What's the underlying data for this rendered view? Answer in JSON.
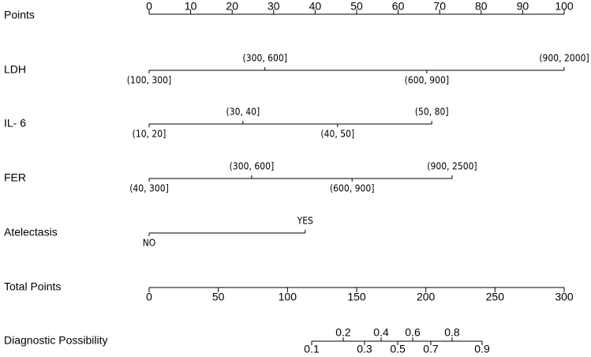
{
  "chart_data": {
    "type": "nomogram",
    "points_axis": {
      "name": "Points",
      "xlim": [
        0,
        100
      ],
      "xticks": [
        0,
        10,
        20,
        30,
        40,
        50,
        60,
        70,
        80,
        90,
        100
      ]
    },
    "variables": [
      {
        "name": "LDH",
        "levels": [
          {
            "label": "(100, 300]",
            "points": 0
          },
          {
            "label": "(300, 600]",
            "points": 27.9
          },
          {
            "label": "(600, 900]",
            "points": 66.9
          },
          {
            "label": "(900, 2000]",
            "points": 100
          }
        ]
      },
      {
        "name": "IL- 6",
        "levels": [
          {
            "label": "(10, 20]",
            "points": 0
          },
          {
            "label": "(30, 40]",
            "points": 22.6
          },
          {
            "label": "(40, 50]",
            "points": 45.4
          },
          {
            "label": "(50, 80]",
            "points": 68.1
          }
        ]
      },
      {
        "name": "FER",
        "levels": [
          {
            "label": "(40, 300]",
            "points": 0
          },
          {
            "label": "(300, 600]",
            "points": 24.7
          },
          {
            "label": "(600, 900]",
            "points": 48.9
          },
          {
            "label": "(900, 2500]",
            "points": 73
          }
        ]
      },
      {
        "name": "Atelectasis",
        "levels": [
          {
            "label": "NO",
            "points": 0
          },
          {
            "label": "YES",
            "points": 37.6
          }
        ]
      }
    ],
    "total_axis": {
      "name": "Total Points",
      "xlim": [
        0,
        300
      ],
      "xticks": [
        0,
        50,
        100,
        150,
        200,
        250,
        300
      ]
    },
    "probability_axis": {
      "name": "Diagnostic Possibility",
      "probabilities": [
        0.1,
        0.2,
        0.3,
        0.4,
        0.5,
        0.6,
        0.7,
        0.8,
        0.9
      ],
      "total_points": [
        117.5,
        140.3,
        155.7,
        167.7,
        179.7,
        190.5,
        203.6,
        219,
        240.7
      ]
    }
  }
}
